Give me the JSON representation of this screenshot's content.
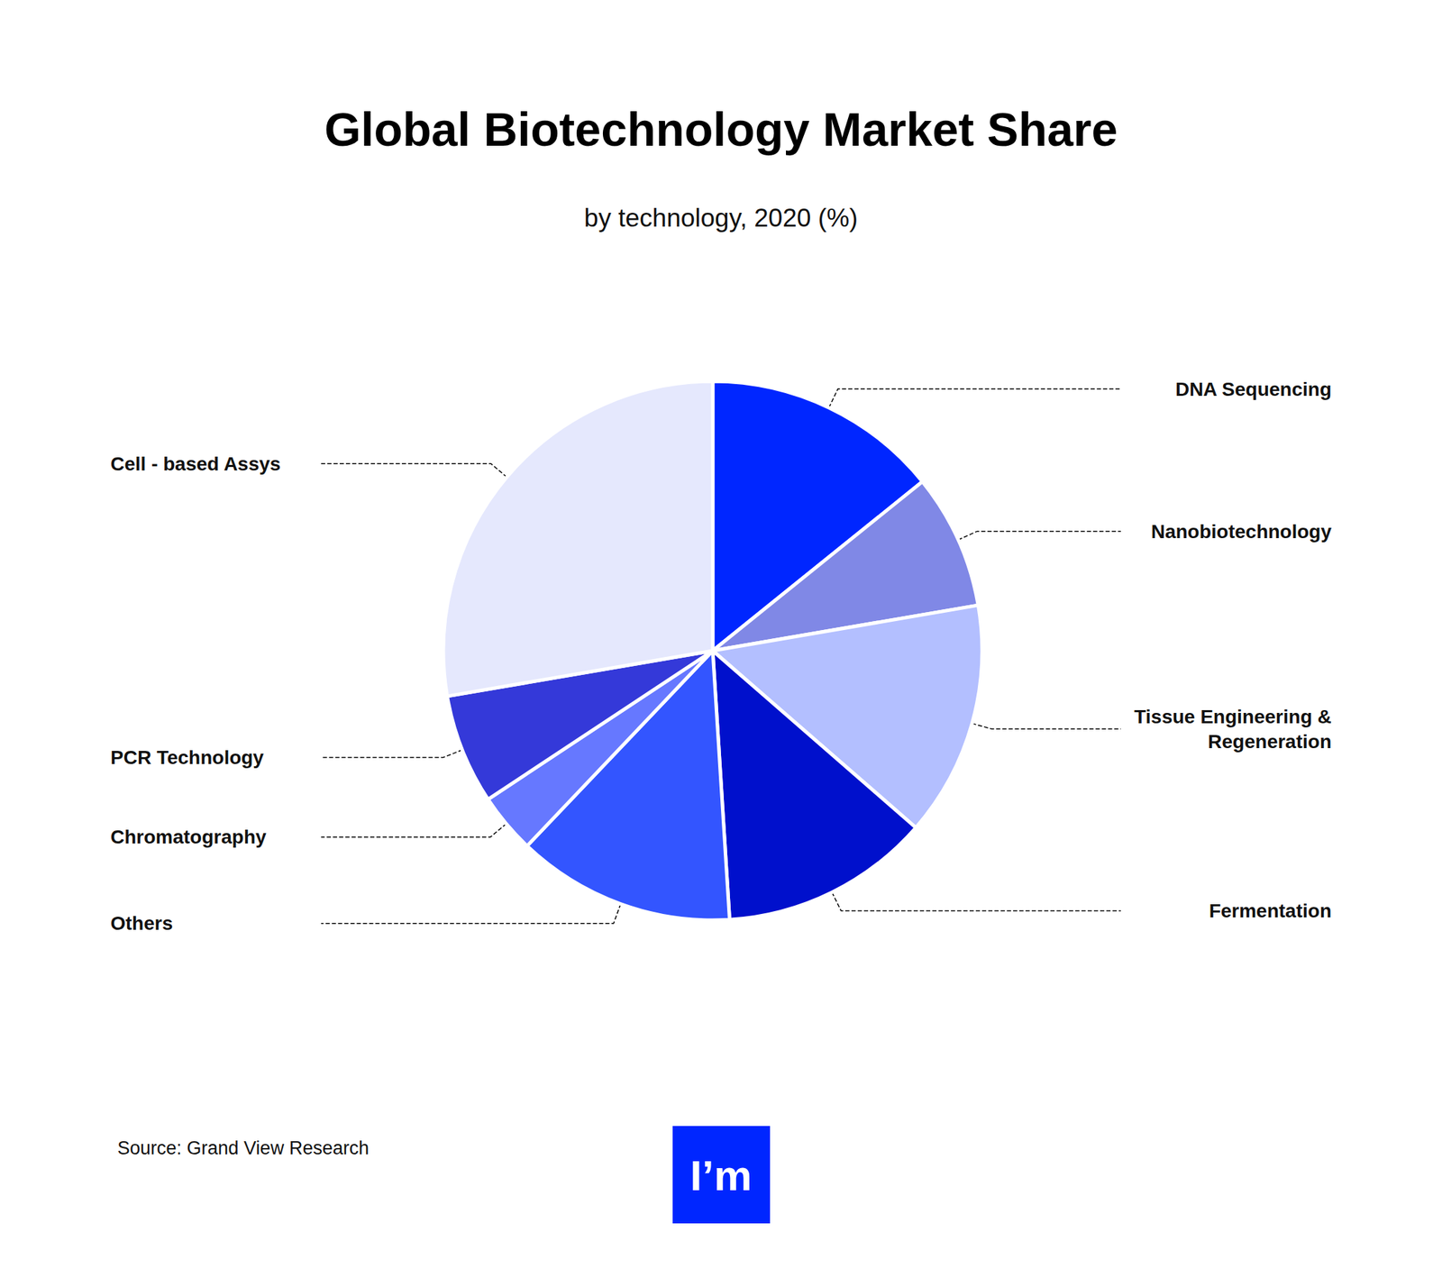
{
  "chart_data": {
    "type": "pie",
    "title": "Global Biotechnology Market Share",
    "subtitle": "by technology, 2020 (%)",
    "categories": [
      "DNA Sequencing",
      "Nanobiotechnology",
      "Tissue Engineering &Regeneration",
      "Fermentation",
      "Others",
      "Chromatography",
      "PCR Technology",
      "Cell - based Assys"
    ],
    "values": [
      14.2,
      8.1,
      14.1,
      12.6,
      13.1,
      3.6,
      6.6,
      27.7
    ],
    "colors": [
      "#0026ff",
      "#8088e6",
      "#b3bfff",
      "#0010cc",
      "#3355ff",
      "#6678ff",
      "#3439d9",
      "#e5e8fd"
    ],
    "source": "Source: Grand View Research",
    "logo": "I’m"
  }
}
